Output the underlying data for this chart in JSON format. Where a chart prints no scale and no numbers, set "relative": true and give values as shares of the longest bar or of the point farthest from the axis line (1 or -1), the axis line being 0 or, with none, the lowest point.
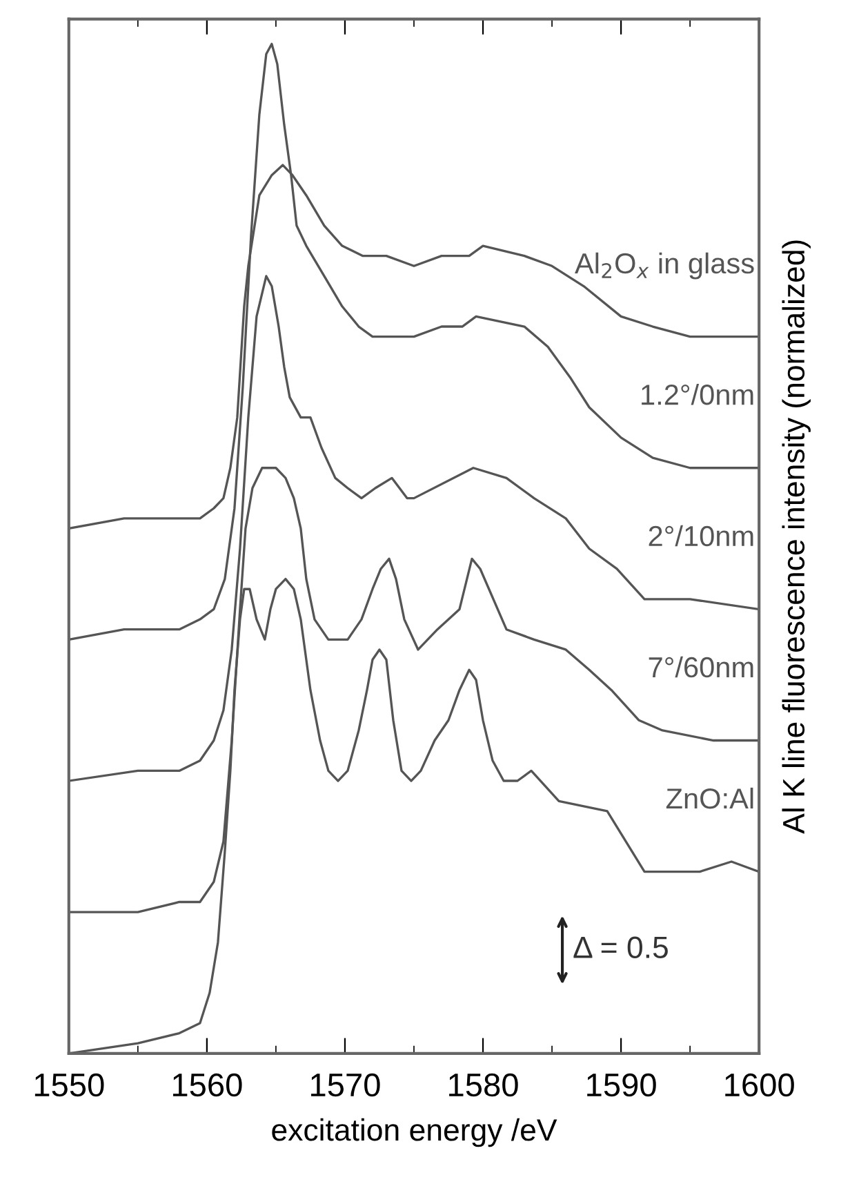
{
  "chart_data": {
    "type": "line",
    "relative": true,
    "xlabel": "excitation energy /eV",
    "y2label": "Al K line fluorescence intensity (normalized)",
    "xlim": [
      1550,
      1600
    ],
    "xticks": [
      1550,
      1560,
      1570,
      1580,
      1590,
      1600
    ],
    "legend": false,
    "grid": false,
    "marker": "none",
    "line_style": "solid",
    "annotations": [
      "Δ = 0.5"
    ],
    "series": [
      {
        "name": "Al$_{2}$O$_{x}$ in glass",
        "color": "#555555",
        "x": [
          1550,
          1554,
          1558,
          1559.5,
          1560.5,
          1561.2,
          1561.7,
          1562.2,
          1562.7,
          1563,
          1563.8,
          1564.7,
          1565.5,
          1566.2,
          1567.2,
          1568.5,
          1569.8,
          1571.3,
          1573,
          1575,
          1577,
          1579,
          1580,
          1583,
          1585,
          1587.3,
          1590,
          1592.3,
          1595,
          1600
        ],
        "values": [
          0.52,
          0.53,
          0.53,
          0.53,
          0.54,
          0.55,
          0.58,
          0.63,
          0.74,
          0.78,
          0.85,
          0.87,
          0.88,
          0.87,
          0.85,
          0.82,
          0.8,
          0.79,
          0.79,
          0.78,
          0.79,
          0.79,
          0.8,
          0.79,
          0.78,
          0.76,
          0.73,
          0.72,
          0.71,
          0.71
        ]
      },
      {
        "name": "1.2°/0nm",
        "color": "#555555",
        "x": [
          1550,
          1554,
          1558,
          1559.5,
          1560.5,
          1561.3,
          1562,
          1562.6,
          1563.2,
          1563.8,
          1564.3,
          1564.7,
          1565.1,
          1565.6,
          1566.1,
          1566.5,
          1567.2,
          1568.5,
          1569.8,
          1571,
          1572,
          1573.5,
          1575,
          1577,
          1578.5,
          1579.5,
          1583,
          1584.7,
          1586.3,
          1587.7,
          1590,
          1592.3,
          1595,
          1600
        ],
        "values": [
          0.41,
          0.42,
          0.42,
          0.43,
          0.44,
          0.47,
          0.54,
          0.66,
          0.81,
          0.93,
          0.99,
          1,
          0.98,
          0.92,
          0.87,
          0.82,
          0.8,
          0.77,
          0.74,
          0.72,
          0.71,
          0.71,
          0.71,
          0.72,
          0.72,
          0.73,
          0.72,
          0.7,
          0.67,
          0.64,
          0.61,
          0.59,
          0.58,
          0.58
        ]
      },
      {
        "name": "2°/10nm",
        "color": "#555555",
        "x": [
          1550,
          1555,
          1558,
          1559.5,
          1560.5,
          1561.2,
          1561.8,
          1562.4,
          1563,
          1563.6,
          1564.3,
          1564.7,
          1565.2,
          1565.6,
          1566,
          1566.8,
          1567.5,
          1568.3,
          1569.3,
          1570.2,
          1571.2,
          1572.2,
          1573.4,
          1574.5,
          1575,
          1579.3,
          1581.7,
          1583.7,
          1586,
          1587.7,
          1589.7,
          1591.7,
          1595,
          1600
        ],
        "values": [
          0.27,
          0.28,
          0.28,
          0.29,
          0.31,
          0.34,
          0.4,
          0.5,
          0.63,
          0.73,
          0.77,
          0.76,
          0.72,
          0.68,
          0.65,
          0.63,
          0.63,
          0.6,
          0.57,
          0.56,
          0.55,
          0.56,
          0.57,
          0.55,
          0.55,
          0.58,
          0.57,
          0.55,
          0.53,
          0.5,
          0.48,
          0.45,
          0.45,
          0.44
        ]
      },
      {
        "name": "7°/60nm",
        "color": "#555555",
        "x": [
          1550,
          1555,
          1558,
          1559.5,
          1560.5,
          1561.2,
          1561.8,
          1562.4,
          1562.8,
          1563.3,
          1564,
          1565,
          1565.7,
          1566.3,
          1566.8,
          1567.2,
          1567.8,
          1568.8,
          1570.2,
          1571.2,
          1572,
          1572.6,
          1573.2,
          1573.7,
          1574.3,
          1575.3,
          1576.7,
          1578.3,
          1579.2,
          1579.8,
          1581.7,
          1583.7,
          1586,
          1587.7,
          1589.3,
          1591.3,
          1593,
          1596.7,
          1600
        ],
        "values": [
          0.14,
          0.14,
          0.15,
          0.15,
          0.17,
          0.21,
          0.31,
          0.44,
          0.52,
          0.56,
          0.58,
          0.58,
          0.57,
          0.55,
          0.52,
          0.47,
          0.43,
          0.41,
          0.41,
          0.43,
          0.46,
          0.48,
          0.49,
          0.47,
          0.43,
          0.4,
          0.42,
          0.44,
          0.49,
          0.48,
          0.42,
          0.41,
          0.4,
          0.38,
          0.36,
          0.33,
          0.32,
          0.31,
          0.31
        ]
      },
      {
        "name": "ZnO:Al",
        "color": "#555555",
        "x": [
          1550,
          1555,
          1558,
          1559.5,
          1560.2,
          1560.8,
          1561.3,
          1561.7,
          1562,
          1562.4,
          1562.7,
          1563.1,
          1563.6,
          1564.2,
          1564.6,
          1565,
          1565.7,
          1566.3,
          1566.8,
          1567.5,
          1568.2,
          1568.8,
          1569.5,
          1570.2,
          1571,
          1571.6,
          1572,
          1572.5,
          1573,
          1573.5,
          1574.1,
          1574.8,
          1575.5,
          1576.5,
          1577.5,
          1578.3,
          1579,
          1579.5,
          1580,
          1580.7,
          1581.5,
          1582.5,
          1583.5,
          1585.5,
          1589,
          1591.7,
          1595.7,
          1598,
          1600
        ],
        "values": [
          0.0,
          0.01,
          0.02,
          0.03,
          0.06,
          0.11,
          0.2,
          0.28,
          0.36,
          0.43,
          0.46,
          0.46,
          0.43,
          0.41,
          0.44,
          0.46,
          0.47,
          0.46,
          0.43,
          0.36,
          0.31,
          0.28,
          0.27,
          0.28,
          0.32,
          0.36,
          0.39,
          0.4,
          0.39,
          0.33,
          0.28,
          0.27,
          0.28,
          0.31,
          0.33,
          0.36,
          0.38,
          0.37,
          0.33,
          0.29,
          0.27,
          0.27,
          0.28,
          0.25,
          0.24,
          0.18,
          0.18,
          0.19,
          0.18
        ]
      }
    ]
  }
}
